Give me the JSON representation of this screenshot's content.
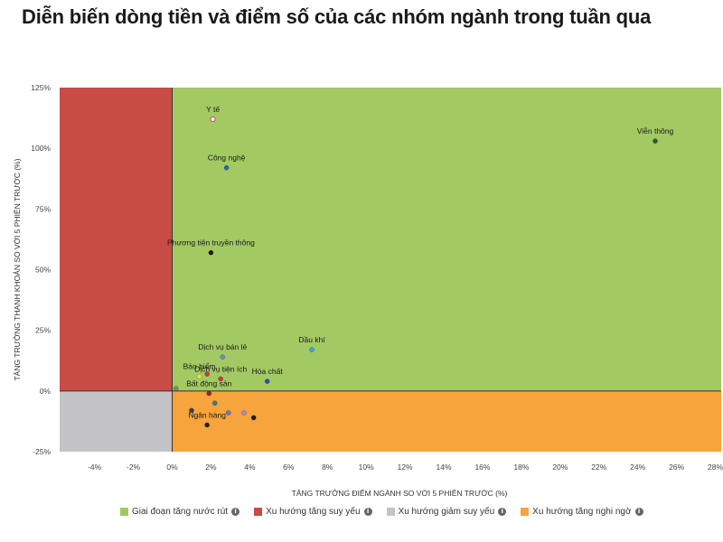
{
  "title": "Diễn biến dòng tiền và điểm số của các nhóm ngành trong tuần qua",
  "chart_data": {
    "type": "scatter",
    "xlabel": "TĂNG TRƯỞNG ĐIỂM NGÀNH SO VỚI 5 PHIÊN TRƯỚC (%)",
    "ylabel": "TĂNG TRƯỞNG THANH KHOẢN SO VỚI 5 PHIÊN TRƯỚC (%)",
    "xlim": [
      -5.8,
      28.3
    ],
    "ylim": [
      -25,
      125
    ],
    "x_ticks": [
      -4,
      -2,
      0,
      2,
      4,
      6,
      8,
      10,
      12,
      14,
      16,
      18,
      20,
      22,
      24,
      26,
      28
    ],
    "y_ticks": [
      -25,
      0,
      25,
      50,
      75,
      100,
      125
    ],
    "quadrants": [
      {
        "name": "Giai đoạn tăng nước rút",
        "color": "#a3c962",
        "x": [
          0,
          28.3
        ],
        "y": [
          0,
          125
        ]
      },
      {
        "name": "Xu hướng tăng suy yếu",
        "color": "#c84b44",
        "x": [
          -5.8,
          0
        ],
        "y": [
          0,
          125
        ]
      },
      {
        "name": "Xu hướng giảm suy yếu",
        "color": "#c4c4c6",
        "x": [
          -5.8,
          0
        ],
        "y": [
          -25,
          0
        ]
      },
      {
        "name": "Xu hướng tăng nghi ngờ",
        "color": "#f6a43b",
        "x": [
          0,
          28.3
        ],
        "y": [
          -25,
          0
        ]
      }
    ],
    "points": [
      {
        "label": "Y tế",
        "x": 2.1,
        "y": 112,
        "color": "#ffffff",
        "stroke": "#c0506a"
      },
      {
        "label": "Viễn thông",
        "x": 24.9,
        "y": 103,
        "color": "#2e5a30"
      },
      {
        "label": "Công nghệ",
        "x": 2.8,
        "y": 92,
        "color": "#2f5fb5"
      },
      {
        "label": "Phương tiện truyền thông",
        "x": 2.0,
        "y": 57,
        "color": "#1a1a1a"
      },
      {
        "label": "Dầu khí",
        "x": 7.2,
        "y": 17,
        "color": "#35a7e0"
      },
      {
        "label": "Dịch vụ bán lẻ",
        "x": 2.6,
        "y": 14,
        "color": "#6b8bd4"
      },
      {
        "label": "Dịch vụ tiện ích",
        "x": 2.5,
        "y": 5,
        "color": "#c03d4a"
      },
      {
        "label": "Hóa chất",
        "x": 4.9,
        "y": 4,
        "color": "#2f4fa0"
      },
      {
        "label": "Bảo hiểm",
        "x": 1.4,
        "y": 6,
        "color": "#e8e24a"
      },
      {
        "label": "Bất động sản",
        "x": 1.9,
        "y": -1,
        "color": "#8a2a3a"
      },
      {
        "label": "Ngân hàng",
        "x": 1.8,
        "y": -14,
        "color": "#222222"
      },
      {
        "label": "",
        "x": 0.2,
        "y": 1,
        "color": "#7a8a70"
      },
      {
        "label": "",
        "x": 1.8,
        "y": 7,
        "color": "#c04040"
      },
      {
        "label": "",
        "x": 2.2,
        "y": -5,
        "color": "#3f7a8a"
      },
      {
        "label": "",
        "x": 1.0,
        "y": -8,
        "color": "#3a3a60"
      },
      {
        "label": "",
        "x": 2.9,
        "y": -9,
        "color": "#7070d0"
      },
      {
        "label": "",
        "x": 3.7,
        "y": -9,
        "color": "#b080d8"
      },
      {
        "label": "",
        "x": 4.2,
        "y": -11,
        "color": "#1a1a1a"
      }
    ]
  },
  "legend": {
    "items": [
      {
        "label": "Giai đoạn tăng nước rút",
        "color": "#a3c962"
      },
      {
        "label": "Xu hướng tăng suy yếu",
        "color": "#c84b44"
      },
      {
        "label": "Xu hướng giảm suy yếu",
        "color": "#c4c4c6"
      },
      {
        "label": "Xu hướng tăng nghi ngờ",
        "color": "#f6a43b"
      }
    ],
    "info_glyph": "i"
  }
}
